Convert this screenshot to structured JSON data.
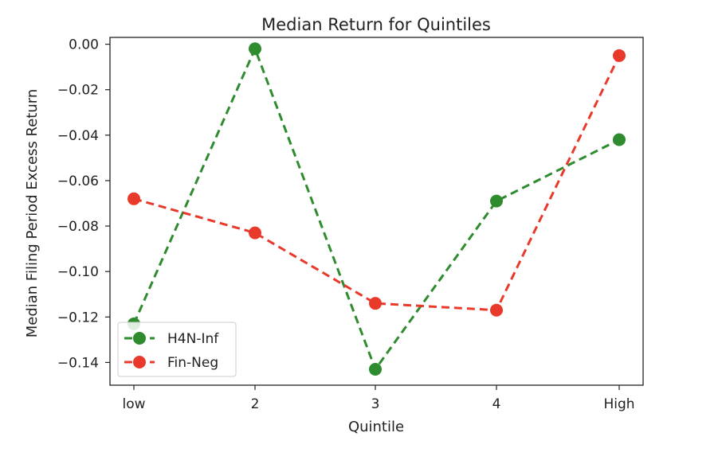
{
  "chart_data": {
    "type": "line",
    "title": "Median Return for Quintiles",
    "xlabel": "Quintile",
    "ylabel": "Median Filing Period Excess Return",
    "categories": [
      "low",
      "2",
      "3",
      "4",
      "High"
    ],
    "ylim": [
      -0.15,
      0.003
    ],
    "yticks": [
      0.0,
      -0.02,
      -0.04,
      -0.06,
      -0.08,
      -0.1,
      -0.12,
      -0.14
    ],
    "ytick_labels": [
      "0.00",
      "−0.02",
      "−0.04",
      "−0.06",
      "−0.08",
      "−0.10",
      "−0.12",
      "−0.14"
    ],
    "grid": false,
    "legend_position": "lower-left",
    "series": [
      {
        "name": "H4N-Inf",
        "color": "#2e8b2e",
        "style": "dashed",
        "marker": "circle",
        "values": [
          -0.123,
          -0.002,
          -0.143,
          -0.069,
          -0.042
        ]
      },
      {
        "name": "Fin-Neg",
        "color": "#e8392b",
        "style": "dashed",
        "marker": "circle",
        "values": [
          -0.068,
          -0.083,
          -0.114,
          -0.117,
          -0.005
        ]
      }
    ]
  }
}
